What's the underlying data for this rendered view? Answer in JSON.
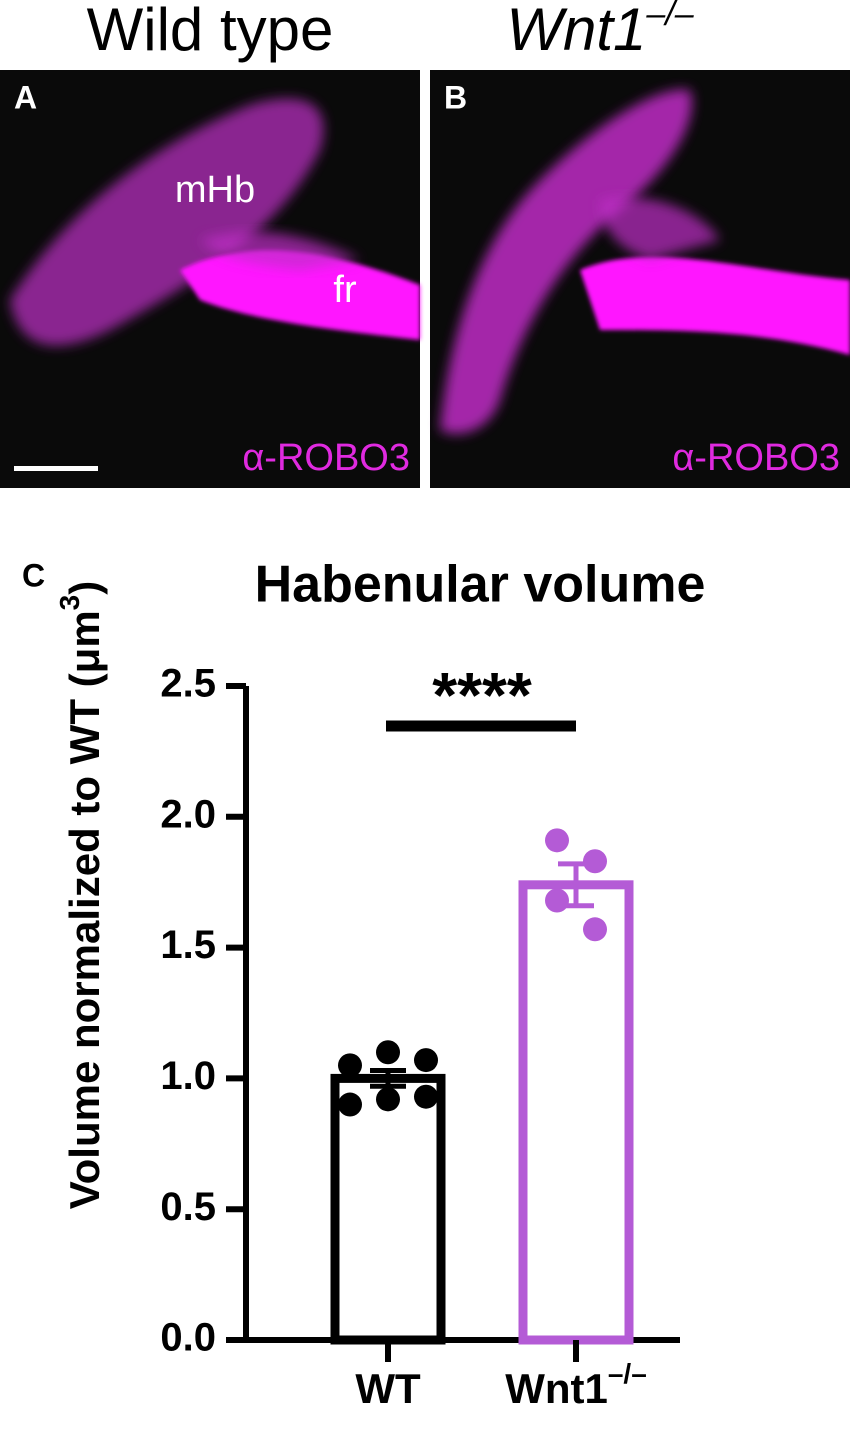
{
  "panels": [
    {
      "header": "Wild type",
      "letter": "A",
      "labels": [
        "mHb",
        "fr"
      ],
      "stain": "α-ROBO3"
    },
    {
      "header": {
        "text": "Wnt1",
        "superscript": "–/–"
      },
      "letter": "B",
      "stain": "α-ROBO3"
    }
  ],
  "chart_data": {
    "type": "bar",
    "panel_letter": "C",
    "title": "Habenular volume",
    "y_label": {
      "text": "Volume normalized to WT (μm",
      "superscript": "3",
      "close": ")"
    },
    "categories": [
      "WT",
      "Wnt1"
    ],
    "category_superscripts": [
      null,
      "–/–"
    ],
    "values": [
      1.0,
      1.74
    ],
    "errors": [
      0.03,
      0.08
    ],
    "points": [
      [
        1.05,
        1.1,
        1.07,
        0.9,
        0.92,
        0.93
      ],
      [
        1.91,
        1.83,
        1.68,
        1.57
      ]
    ],
    "colors": [
      "#000000",
      "#b45bd6"
    ],
    "significance": "****",
    "ylim": [
      0,
      2.5
    ],
    "yticks": [
      {
        "value": 0,
        "label": "0.0"
      },
      0.5,
      {
        "value": 1,
        "label": "1.0"
      },
      1.5,
      {
        "value": 2,
        "label": "2.0"
      },
      2.5
    ]
  }
}
